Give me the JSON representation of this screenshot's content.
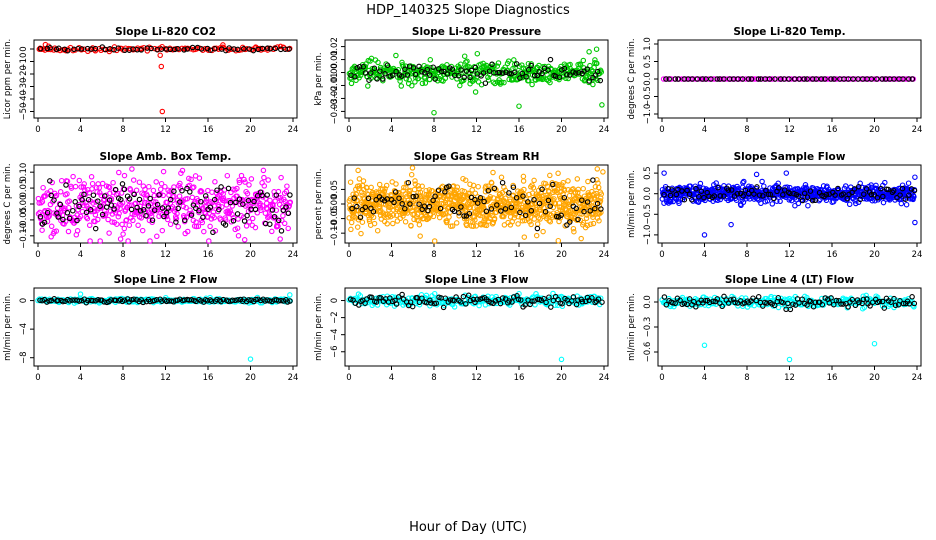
{
  "page": {
    "title": "HDP_140325  Slope Diagnostics",
    "xlabel": "Hour of Day (UTC)"
  },
  "chart_data": [
    {
      "type": "scatter",
      "title": "Slope Li-820 CO2",
      "ylabel": "Licor ppm per min.",
      "color": "#ff0000",
      "xlim": [
        0,
        24
      ],
      "ylim": [
        -52,
        4
      ],
      "xticks": [
        0,
        4,
        8,
        12,
        16,
        20,
        24
      ],
      "yticks": [
        0,
        -10,
        -20,
        -30,
        -40,
        -50
      ],
      "yticklabels": [
        "0",
        "−10",
        "−20",
        "−30",
        "−40",
        "−50"
      ],
      "baseline": 0,
      "noise": 0.8,
      "black_noise": 0.6,
      "n_color": 110,
      "n_black": 55,
      "outliers": [
        [
          0.7,
          3.5
        ],
        [
          1.0,
          2.2
        ],
        [
          11.5,
          -5
        ],
        [
          11.6,
          -14
        ],
        [
          11.7,
          -50
        ],
        [
          17.4,
          3.3
        ],
        [
          20.5,
          1.5
        ],
        [
          0.2,
          0.6
        ]
      ]
    },
    {
      "type": "scatter",
      "title": "Slope Li-820 Pressure",
      "ylabel": "kPa per min.",
      "color": "#00c800",
      "xlim": [
        0,
        24
      ],
      "ylim": [
        -0.032,
        0.022
      ],
      "xticks": [
        0,
        4,
        8,
        12,
        16,
        20,
        24
      ],
      "yticks": [
        0.02,
        0.01,
        0.0,
        -0.01,
        -0.02,
        -0.03
      ],
      "yticklabels": [
        "0.02",
        "0.01",
        "0.00",
        "−0.01",
        "−0.02",
        "−0.03"
      ],
      "baseline": 0,
      "noise": 0.0045,
      "black_noise": 0.003,
      "n_color": 420,
      "n_black": 90,
      "outliers": [
        [
          8,
          -0.031
        ],
        [
          16,
          -0.026
        ],
        [
          23.8,
          -0.025
        ],
        [
          23.3,
          0.018
        ],
        [
          22.6,
          0.016
        ]
      ]
    },
    {
      "type": "scatter",
      "title": "Slope Li-820 Temp.",
      "ylabel": "degrees C per min.",
      "color": "#ff00ff",
      "xlim": [
        0,
        24
      ],
      "ylim": [
        -1,
        1
      ],
      "xticks": [
        0,
        4,
        8,
        12,
        16,
        20,
        24
      ],
      "yticks": [
        1.0,
        0.5,
        0.0,
        -0.5,
        -1.0
      ],
      "yticklabels": [
        "1.0",
        "0.5",
        "0.0",
        "−0.5",
        "−1.0"
      ],
      "baseline": 0,
      "noise": 0.0,
      "black_noise": 0.0,
      "n_color": 110,
      "n_black": 55,
      "outliers": []
    },
    {
      "type": "scatter",
      "title": "Slope Amb. Box Temp.",
      "ylabel": "degrees C per min.",
      "color": "#ff00ff",
      "xlim": [
        0,
        24
      ],
      "ylim": [
        -0.11,
        0.11
      ],
      "xticks": [
        0,
        4,
        8,
        12,
        16,
        20,
        24
      ],
      "yticks": [
        0.1,
        0.05,
        0.0,
        -0.05,
        -0.1
      ],
      "yticklabels": [
        "0.10",
        "0.05",
        "0.00",
        "−0.05",
        "−0.10"
      ],
      "baseline": 0,
      "noise": 0.045,
      "black_noise": 0.04,
      "n_color": 520,
      "n_black": 110,
      "outliers": []
    },
    {
      "type": "scatter",
      "title": "Slope Gas Stream RH",
      "ylabel": "percent per min.",
      "color": "#ffa500",
      "xlim": [
        0,
        24
      ],
      "ylim": [
        -0.12,
        0.12
      ],
      "xticks": [
        0,
        4,
        8,
        12,
        16,
        20,
        24
      ],
      "yticks": [
        0.05,
        0.0,
        -0.05,
        -0.1
      ],
      "yticklabels": [
        "0.05",
        "0.00",
        "−0.05",
        "−0.10"
      ],
      "baseline": 0,
      "noise": 0.04,
      "black_noise": 0.035,
      "n_color": 900,
      "n_black": 90,
      "outliers": [
        [
          23.9,
          0.11
        ],
        [
          6.7,
          -0.11
        ]
      ]
    },
    {
      "type": "scatter",
      "title": "Slope Sample Flow",
      "ylabel": "ml/min per min.",
      "color": "#0000ff",
      "xlim": [
        0,
        24
      ],
      "ylim": [
        -1.1,
        0.6
      ],
      "xticks": [
        0,
        4,
        8,
        12,
        16,
        20,
        24
      ],
      "yticks": [
        0.5,
        0.0,
        -0.5,
        -1.0
      ],
      "yticklabels": [
        "0.5",
        "0.0",
        "−0.5",
        "−1.0"
      ],
      "baseline": 0,
      "noise": 0.1,
      "black_noise": 0.08,
      "n_color": 700,
      "n_black": 90,
      "outliers": [
        [
          4,
          -1.0
        ],
        [
          0.2,
          0.5
        ],
        [
          8.9,
          0.47
        ],
        [
          11.7,
          0.5
        ],
        [
          23.8,
          -0.7
        ],
        [
          23.8,
          0.4
        ],
        [
          6.5,
          -0.75
        ]
      ]
    },
    {
      "type": "scatter",
      "title": "Slope Line 2 Flow",
      "ylabel": "ml/min per min.",
      "color": "#00ffff",
      "xlim": [
        0,
        24
      ],
      "ylim": [
        -8.6,
        1.2
      ],
      "xticks": [
        0,
        4,
        8,
        12,
        16,
        20,
        24
      ],
      "yticks": [
        0,
        -4,
        -8
      ],
      "yticklabels": [
        "0",
        "−4",
        "−8"
      ],
      "baseline": 0,
      "noise": 0.15,
      "black_noise": 0.12,
      "n_color": 260,
      "n_black": 110,
      "outliers": [
        [
          20,
          -8.2
        ],
        [
          4,
          0.9
        ],
        [
          23.7,
          0.8
        ]
      ]
    },
    {
      "type": "scatter",
      "title": "Slope Line 3 Flow",
      "ylabel": "ml/min per min.",
      "color": "#00ffff",
      "xlim": [
        0,
        24
      ],
      "ylim": [
        -7.2,
        1.0
      ],
      "xticks": [
        0,
        4,
        8,
        12,
        16,
        20,
        24
      ],
      "yticks": [
        0,
        -2,
        -4,
        -6
      ],
      "yticklabels": [
        "0",
        "−2",
        "−4",
        "−6"
      ],
      "baseline": 0,
      "noise": 0.3,
      "black_noise": 0.3,
      "n_color": 280,
      "n_black": 110,
      "outliers": [
        [
          20,
          -6.9
        ],
        [
          16,
          0.8
        ]
      ]
    },
    {
      "type": "scatter",
      "title": "Slope Line 4 (LT) Flow",
      "ylabel": "ml/min per min.",
      "color": "#00ffff",
      "xlim": [
        0,
        24
      ],
      "ylim": [
        -0.72,
        0.12
      ],
      "xticks": [
        0,
        4,
        8,
        12,
        16,
        20,
        24
      ],
      "yticks": [
        0.0,
        -0.3,
        -0.6
      ],
      "yticklabels": [
        "0.0",
        "−0.3",
        "−0.6"
      ],
      "baseline": 0,
      "noise": 0.03,
      "black_noise": 0.03,
      "n_color": 280,
      "n_black": 110,
      "outliers": [
        [
          4,
          -0.52
        ],
        [
          12,
          -0.69
        ],
        [
          20,
          -0.5
        ]
      ]
    }
  ]
}
